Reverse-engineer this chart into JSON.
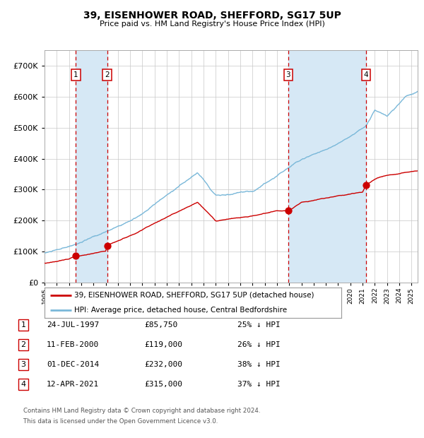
{
  "title": "39, EISENHOWER ROAD, SHEFFORD, SG17 5UP",
  "subtitle": "Price paid vs. HM Land Registry's House Price Index (HPI)",
  "legend_line1": "39, EISENHOWER ROAD, SHEFFORD, SG17 5UP (detached house)",
  "legend_line2": "HPI: Average price, detached house, Central Bedfordshire",
  "footer1": "Contains HM Land Registry data © Crown copyright and database right 2024.",
  "footer2": "This data is licensed under the Open Government Licence v3.0.",
  "transactions": [
    {
      "num": 1,
      "date_label": "24-JUL-1997",
      "date_x": 1997.56,
      "price": 85750,
      "pct": "25% ↓ HPI"
    },
    {
      "num": 2,
      "date_label": "11-FEB-2000",
      "date_x": 2000.12,
      "price": 119000,
      "pct": "26% ↓ HPI"
    },
    {
      "num": 3,
      "date_label": "01-DEC-2014",
      "date_x": 2014.92,
      "price": 232000,
      "pct": "38% ↓ HPI"
    },
    {
      "num": 4,
      "date_label": "12-APR-2021",
      "date_x": 2021.28,
      "price": 315000,
      "pct": "37% ↓ HPI"
    }
  ],
  "hpi_color": "#7ab8d9",
  "price_color": "#cc0000",
  "background_color": "#ffffff",
  "plot_bg_color": "#ffffff",
  "grid_color": "#c8c8c8",
  "highlight_bg": "#d6e8f5",
  "vline_color": "#cc0000",
  "ylim": [
    0,
    750000
  ],
  "xlim_start": 1995,
  "xlim_end": 2025.5,
  "yticks": [
    0,
    100000,
    200000,
    300000,
    400000,
    500000,
    600000,
    700000
  ]
}
